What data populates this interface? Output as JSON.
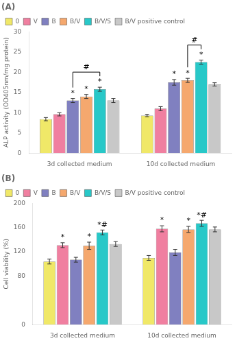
{
  "chart_data": [
    {
      "type": "bar",
      "title": "(A)",
      "ylabel": "ALP activity (OD405nm/mg protein)",
      "categories": [
        "3d collected medium",
        "10d collected medium"
      ],
      "series": [
        {
          "name": "0",
          "color": "#f0e868",
          "values": [
            8.4,
            9.3
          ],
          "errors": [
            0.4,
            0.3
          ]
        },
        {
          "name": "V",
          "color": "#f07fa0",
          "values": [
            9.6,
            11.0
          ],
          "errors": [
            0.4,
            0.5
          ]
        },
        {
          "name": "B",
          "color": "#8080c0",
          "values": [
            13.0,
            17.5
          ],
          "errors": [
            0.5,
            0.7
          ]
        },
        {
          "name": "B/V",
          "color": "#f5a86e",
          "values": [
            14.0,
            18.0
          ],
          "errors": [
            0.5,
            0.5
          ]
        },
        {
          "name": "B/V/S",
          "color": "#28c8c8",
          "values": [
            15.8,
            22.5
          ],
          "errors": [
            0.5,
            0.5
          ]
        },
        {
          "name": "B/V positive control",
          "color": "#c8c8c8",
          "values": [
            13.0,
            17.0
          ],
          "errors": [
            0.5,
            0.4
          ]
        }
      ],
      "ylim": [
        0,
        30
      ],
      "yticks": [
        0,
        5,
        10,
        15,
        20,
        25,
        30
      ],
      "grid": false,
      "legend": "upper left",
      "annotations": [
        {
          "text": "*",
          "category": "3d collected medium",
          "series": "B"
        },
        {
          "text": "*",
          "category": "3d collected medium",
          "series": "B/V"
        },
        {
          "text": "*",
          "category": "3d collected medium",
          "series": "B/V/S"
        },
        {
          "text": "*",
          "category": "10d collected medium",
          "series": "B"
        },
        {
          "text": "*",
          "category": "10d collected medium",
          "series": "B/V"
        },
        {
          "text": "*",
          "category": "10d collected medium",
          "series": "B/V/S"
        },
        {
          "text": "#",
          "category": "3d collected medium",
          "series": [
            "B",
            "B/V/S"
          ]
        },
        {
          "text": "#",
          "category": "10d collected medium",
          "series": [
            "B/V",
            "B/V/S"
          ]
        }
      ]
    },
    {
      "type": "bar",
      "title": "(B)",
      "ylabel": "Cell viability (%)",
      "categories": [
        "3d collected medium",
        "10d collected medium"
      ],
      "series": [
        {
          "name": "0",
          "color": "#f0e868",
          "values": [
            104,
            110
          ],
          "errors": [
            4,
            4
          ]
        },
        {
          "name": "V",
          "color": "#f07fa0",
          "values": [
            131,
            158
          ],
          "errors": [
            4,
            5
          ]
        },
        {
          "name": "B",
          "color": "#8080c0",
          "values": [
            107,
            119
          ],
          "errors": [
            4,
            5
          ]
        },
        {
          "name": "B/V",
          "color": "#f5a86e",
          "values": [
            130,
            157
          ],
          "errors": [
            6,
            5
          ]
        },
        {
          "name": "B/V/S",
          "color": "#28c8c8",
          "values": [
            152,
            167
          ],
          "errors": [
            4,
            5
          ]
        },
        {
          "name": "B/V positive control",
          "color": "#c8c8c8",
          "values": [
            133,
            157
          ],
          "errors": [
            4,
            4
          ]
        }
      ],
      "ylim": [
        0,
        200
      ],
      "yticks": [
        0,
        80,
        120,
        160,
        200
      ],
      "grid": false,
      "legend": "upper left",
      "annotations": [
        {
          "text": "*",
          "category": "3d collected medium",
          "series": "V"
        },
        {
          "text": "*",
          "category": "3d collected medium",
          "series": "B/V"
        },
        {
          "text": "*#",
          "category": "3d collected medium",
          "series": "B/V/S"
        },
        {
          "text": "*",
          "category": "10d collected medium",
          "series": "V"
        },
        {
          "text": "*",
          "category": "10d collected medium",
          "series": "B/V"
        },
        {
          "text": "*#",
          "category": "10d collected medium",
          "series": "B/V/S"
        }
      ]
    }
  ]
}
